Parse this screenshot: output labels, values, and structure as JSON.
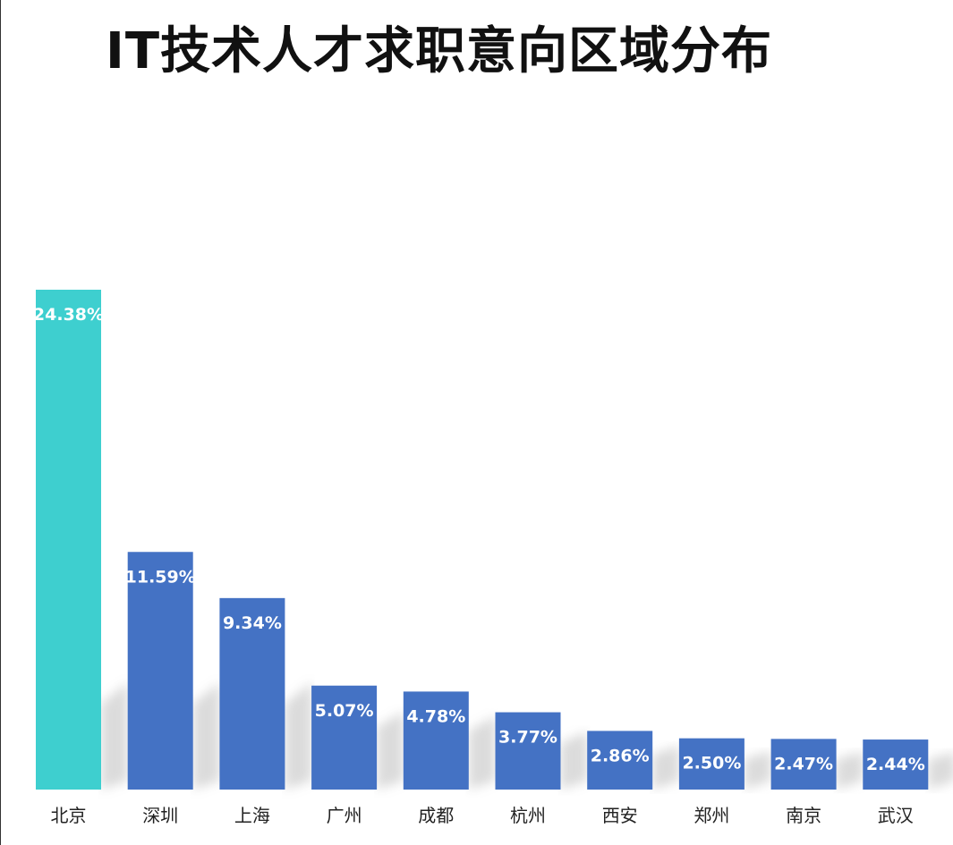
{
  "chart_data": {
    "type": "bar",
    "title": "IT技术人才求职意向区域分布",
    "categories": [
      "北京",
      "深圳",
      "上海",
      "广州",
      "成都",
      "杭州",
      "西安",
      "郑州",
      "南京",
      "武汉"
    ],
    "values": [
      24.38,
      11.59,
      9.34,
      5.07,
      4.78,
      3.77,
      2.86,
      2.5,
      2.47,
      2.44
    ],
    "labels": [
      "24.38%",
      "11.59%",
      "9.34%",
      "5.07%",
      "4.78%",
      "3.77%",
      "2.86%",
      "2.50%",
      "2.47%",
      "2.44%"
    ],
    "unit": "%",
    "xlabel": "",
    "ylabel": "",
    "ylim": [
      0,
      24.38
    ],
    "grid": false,
    "colors": {
      "highlight": "#3ecfcf",
      "default": "#4472c4"
    }
  }
}
